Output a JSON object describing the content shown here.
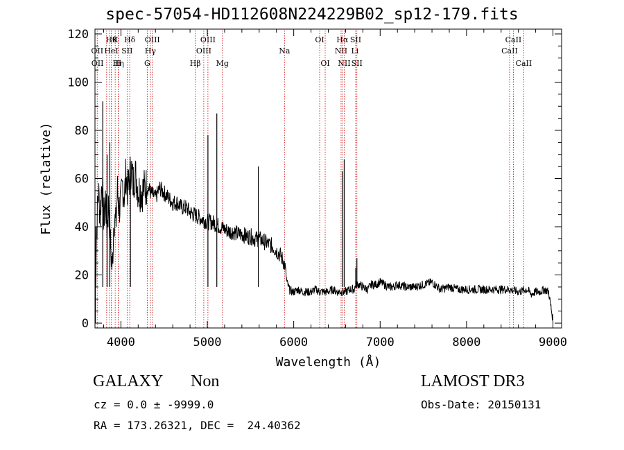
{
  "title": "spec-57054-HD112608N224229B02_sp12-179.fits",
  "chart_data": {
    "type": "line",
    "xlabel": "Wavelength (Å)",
    "ylabel": "Flux (relative)",
    "xlim": [
      3700,
      9100
    ],
    "ylim": [
      -2,
      122
    ],
    "xticks": [
      4000,
      5000,
      6000,
      7000,
      8000,
      9000
    ],
    "yticks": [
      0,
      20,
      40,
      60,
      80,
      100,
      120
    ],
    "series": [
      {
        "name": "flux",
        "x": [
          3700,
          3720,
          3740,
          3760,
          3780,
          3800,
          3820,
          3840,
          3860,
          3880,
          3900,
          3920,
          3940,
          3960,
          3980,
          4000,
          4020,
          4040,
          4060,
          4080,
          4100,
          4120,
          4140,
          4160,
          4180,
          4200,
          4250,
          4300,
          4350,
          4400,
          4450,
          4500,
          4550,
          4600,
          4650,
          4700,
          4750,
          4800,
          4850,
          4900,
          4950,
          5000,
          5050,
          5100,
          5150,
          5200,
          5250,
          5300,
          5350,
          5400,
          5450,
          5500,
          5550,
          5600,
          5650,
          5700,
          5750,
          5800,
          5850,
          5900,
          5920,
          5950,
          5980,
          6000,
          6050,
          6100,
          6150,
          6200,
          6250,
          6300,
          6350,
          6400,
          6450,
          6500,
          6550,
          6600,
          6650,
          6700,
          6720,
          6740,
          6760,
          6800,
          6850,
          6880,
          6900,
          6920,
          6950,
          7000,
          7050,
          7100,
          7150,
          7200,
          7300,
          7400,
          7500,
          7600,
          7700,
          7800,
          7900,
          8000,
          8100,
          8200,
          8300,
          8400,
          8500,
          8600,
          8700,
          8750,
          8800,
          8850,
          8900,
          8950,
          9000
        ],
        "y": [
          10,
          40,
          55,
          45,
          60,
          42,
          52,
          40,
          50,
          32,
          22,
          45,
          40,
          55,
          48,
          50,
          58,
          52,
          62,
          55,
          60,
          65,
          58,
          62,
          60,
          55,
          55,
          57,
          54,
          52,
          56,
          54,
          52,
          50,
          50,
          48,
          48,
          46,
          45,
          44,
          43,
          42,
          42,
          41,
          40,
          39,
          38,
          38,
          37,
          37,
          36,
          36,
          35,
          35,
          34,
          33,
          32,
          30,
          28,
          24,
          17,
          14,
          13,
          13,
          14,
          13,
          13,
          13,
          14,
          13,
          13,
          13,
          14,
          13,
          13,
          13,
          14,
          14,
          16,
          16,
          16,
          15,
          14,
          15,
          16,
          16,
          16,
          17,
          16,
          15,
          15,
          16,
          15,
          15,
          16,
          17,
          14,
          15,
          14,
          14,
          14,
          14,
          14,
          14,
          14,
          13,
          14,
          12,
          13,
          13,
          14,
          13,
          1
        ]
      },
      {
        "name": "emission spikes",
        "x": [
          3790,
          3840,
          3872,
          4110,
          5007,
          5110,
          5590,
          6563,
          6584,
          6717,
          6731
        ],
        "y": [
          92,
          70,
          75,
          67,
          78,
          87,
          65,
          63,
          68,
          23,
          27
        ]
      }
    ],
    "line_labels": [
      {
        "wavelength": 3726,
        "label": "OII",
        "row": 2
      },
      {
        "wavelength": 3729,
        "label": "OII",
        "row": 3
      },
      {
        "wavelength": 3889,
        "label": "Hθ",
        "row": 1
      },
      {
        "wavelength": 3889,
        "label": "HeI",
        "row": 2
      },
      {
        "wavelength": 3970,
        "label": "Hη",
        "row": 3
      },
      {
        "wavelength": 3934,
        "label": "K",
        "row": 1
      },
      {
        "wavelength": 3968,
        "label": "H",
        "row": 3
      },
      {
        "wavelength": 4072,
        "label": "SII",
        "row": 2
      },
      {
        "wavelength": 4102,
        "label": "Hδ",
        "row": 1
      },
      {
        "wavelength": 4364,
        "label": "OIII",
        "row": 1
      },
      {
        "wavelength": 4341,
        "label": "Hγ",
        "row": 2
      },
      {
        "wavelength": 4305,
        "label": "G",
        "row": 3
      },
      {
        "wavelength": 4861,
        "label": "Hβ",
        "row": 3
      },
      {
        "wavelength": 5007,
        "label": "OIII",
        "row": 1
      },
      {
        "wavelength": 4959,
        "label": "OIII",
        "row": 2
      },
      {
        "wavelength": 5175,
        "label": "Mg",
        "row": 3
      },
      {
        "wavelength": 5893,
        "label": "Na",
        "row": 2
      },
      {
        "wavelength": 6300,
        "label": "OI",
        "row": 1
      },
      {
        "wavelength": 6364,
        "label": "OI",
        "row": 3
      },
      {
        "wavelength": 6563,
        "label": "Hα",
        "row": 1
      },
      {
        "wavelength": 6548,
        "label": "NII",
        "row": 2
      },
      {
        "wavelength": 6584,
        "label": "NII",
        "row": 3
      },
      {
        "wavelength": 6717,
        "label": "SII",
        "row": 1
      },
      {
        "wavelength": 6708,
        "label": "Li",
        "row": 2
      },
      {
        "wavelength": 6731,
        "label": "SII",
        "row": 3
      },
      {
        "wavelength": 8542,
        "label": "CaII",
        "row": 1
      },
      {
        "wavelength": 8498,
        "label": "CaII",
        "row": 2
      },
      {
        "wavelength": 8662,
        "label": "CaII",
        "row": 3
      }
    ],
    "line_markers": [
      3726,
      3835,
      3869,
      3889,
      3934,
      3968,
      3970,
      4072,
      4102,
      4305,
      4341,
      4364,
      4861,
      4959,
      5007,
      5175,
      5893,
      6300,
      6364,
      6548,
      6563,
      6584,
      6717,
      6731,
      8498,
      8542,
      8662
    ],
    "colors": {
      "spectrum": "#000000",
      "markers": "#cc0000",
      "axes": "#000000"
    }
  },
  "info": {
    "class": "GALAXY",
    "subclass": "Non",
    "survey": "LAMOST DR3",
    "cz_label": "cz = 0.0 ± -9999.0",
    "obs_date": "Obs-Date: 20150131",
    "radec": "RA = 173.26321, DEC =  24.40362"
  }
}
